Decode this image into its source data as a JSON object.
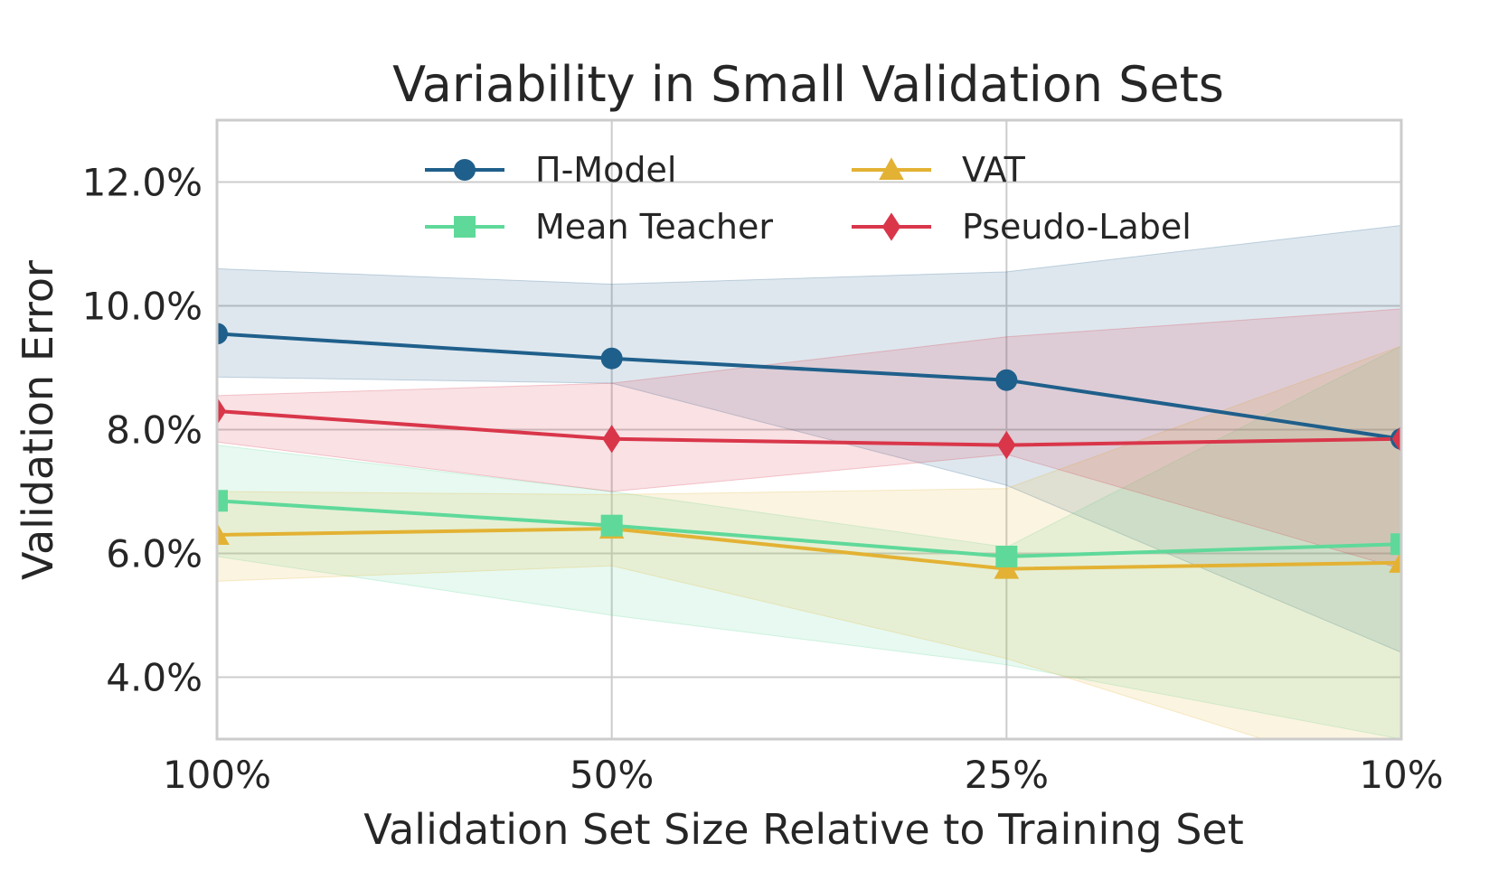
{
  "chart_data": {
    "type": "line",
    "title": "Variability in Small Validation Sets",
    "xlabel": "Validation Set Size Relative to Training Set",
    "ylabel": "Validation Error",
    "categories": [
      "100%",
      "50%",
      "25%",
      "10%"
    ],
    "ylim": [
      3.0,
      13.0
    ],
    "yticks": [
      4.0,
      6.0,
      8.0,
      10.0,
      12.0
    ],
    "ytick_labels": [
      "4.0%",
      "6.0%",
      "8.0%",
      "10.0%",
      "12.0%"
    ],
    "grid": true,
    "legend_position": "top-center",
    "series": [
      {
        "name": "Π-Model",
        "color": "#1f5f8b",
        "marker": "circle",
        "values": [
          9.55,
          9.15,
          8.8,
          7.85
        ],
        "upper": [
          10.6,
          10.35,
          10.55,
          11.3
        ],
        "lower": [
          8.85,
          8.75,
          7.1,
          4.4
        ]
      },
      {
        "name": "VAT",
        "color": "#e3b234",
        "marker": "triangle",
        "values": [
          6.3,
          6.4,
          5.75,
          5.85
        ],
        "upper": [
          7.0,
          6.95,
          7.05,
          9.35
        ],
        "lower": [
          5.55,
          5.8,
          4.3,
          2.3
        ]
      },
      {
        "name": "Mean Teacher",
        "color": "#5fd99a",
        "marker": "square",
        "values": [
          6.85,
          6.45,
          5.95,
          6.15
        ],
        "upper": [
          7.75,
          7.0,
          6.1,
          9.35
        ],
        "lower": [
          5.95,
          5.0,
          4.2,
          3.0
        ]
      },
      {
        "name": "Pseudo-Label",
        "color": "#d9364a",
        "marker": "diamond",
        "values": [
          8.3,
          7.85,
          7.75,
          7.85
        ],
        "upper": [
          8.55,
          8.75,
          9.5,
          9.95
        ],
        "lower": [
          7.8,
          7.0,
          7.6,
          5.75
        ]
      }
    ],
    "legend_order": [
      0,
      1,
      2,
      3
    ]
  }
}
